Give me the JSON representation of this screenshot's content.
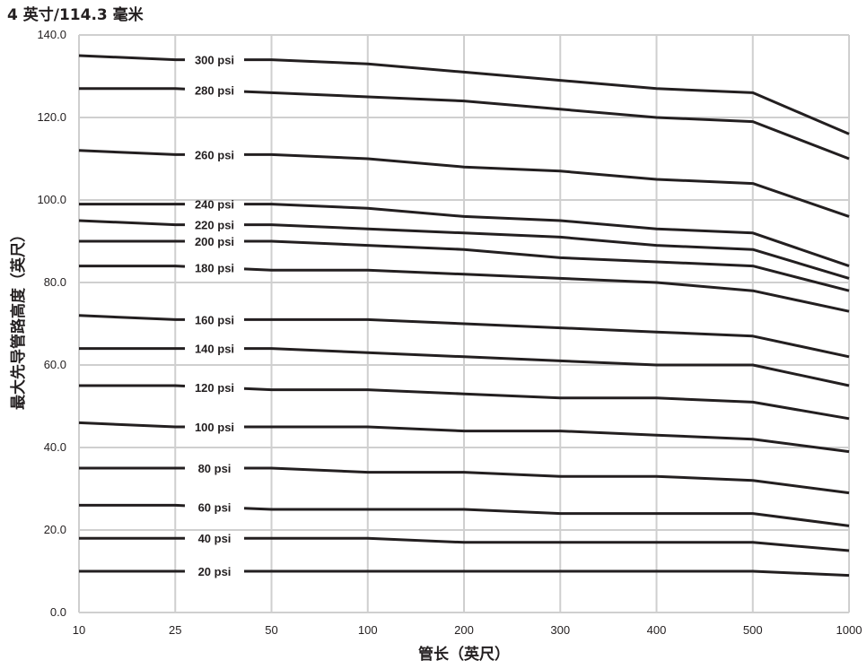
{
  "chart_data": {
    "type": "line",
    "title": "4 英寸/114.3 毫米",
    "xlabel": "管长（英尺）",
    "ylabel": "最大先导管路高度（英尺）",
    "categories": [
      "10",
      "25",
      "50",
      "100",
      "200",
      "300",
      "400",
      "500",
      "1000"
    ],
    "ylim": [
      0,
      140
    ],
    "y_ticks": [
      "0.0",
      "20.0",
      "40.0",
      "60.0",
      "80.0",
      "100.0",
      "120.0",
      "140.0"
    ],
    "grid": true,
    "series": [
      {
        "name": "300 psi",
        "values": [
          135,
          134,
          134,
          133,
          131,
          129,
          127,
          126,
          116
        ]
      },
      {
        "name": "280 psi",
        "values": [
          127,
          127,
          126,
          125,
          124,
          122,
          120,
          119,
          110
        ]
      },
      {
        "name": "260 psi",
        "values": [
          112,
          111,
          111,
          110,
          108,
          107,
          105,
          104,
          96
        ]
      },
      {
        "name": "240 psi",
        "values": [
          99,
          99,
          99,
          98,
          96,
          95,
          93,
          92,
          84
        ]
      },
      {
        "name": "220 psi",
        "values": [
          95,
          94,
          94,
          93,
          92,
          91,
          89,
          88,
          81
        ]
      },
      {
        "name": "200 psi",
        "values": [
          90,
          90,
          90,
          89,
          88,
          86,
          85,
          84,
          78
        ]
      },
      {
        "name": "180 psi",
        "values": [
          84,
          84,
          83,
          83,
          82,
          81,
          80,
          78,
          73
        ]
      },
      {
        "name": "160 psi",
        "values": [
          72,
          71,
          71,
          71,
          70,
          69,
          68,
          67,
          62
        ]
      },
      {
        "name": "140 psi",
        "values": [
          64,
          64,
          64,
          63,
          62,
          61,
          60,
          60,
          55
        ]
      },
      {
        "name": "120 psi",
        "values": [
          55,
          55,
          54,
          54,
          53,
          52,
          52,
          51,
          47
        ]
      },
      {
        "name": "100 psi",
        "values": [
          46,
          45,
          45,
          45,
          44,
          44,
          43,
          42,
          39
        ]
      },
      {
        "name": "80 psi",
        "values": [
          35,
          35,
          35,
          34,
          34,
          33,
          33,
          32,
          29
        ]
      },
      {
        "name": "60 psi",
        "values": [
          26,
          26,
          25,
          25,
          25,
          24,
          24,
          24,
          21
        ]
      },
      {
        "name": "40 psi",
        "values": [
          18,
          18,
          18,
          18,
          17,
          17,
          17,
          17,
          15
        ]
      },
      {
        "name": "20 psi",
        "values": [
          10,
          10,
          10,
          10,
          10,
          10,
          10,
          10,
          9
        ]
      }
    ]
  }
}
